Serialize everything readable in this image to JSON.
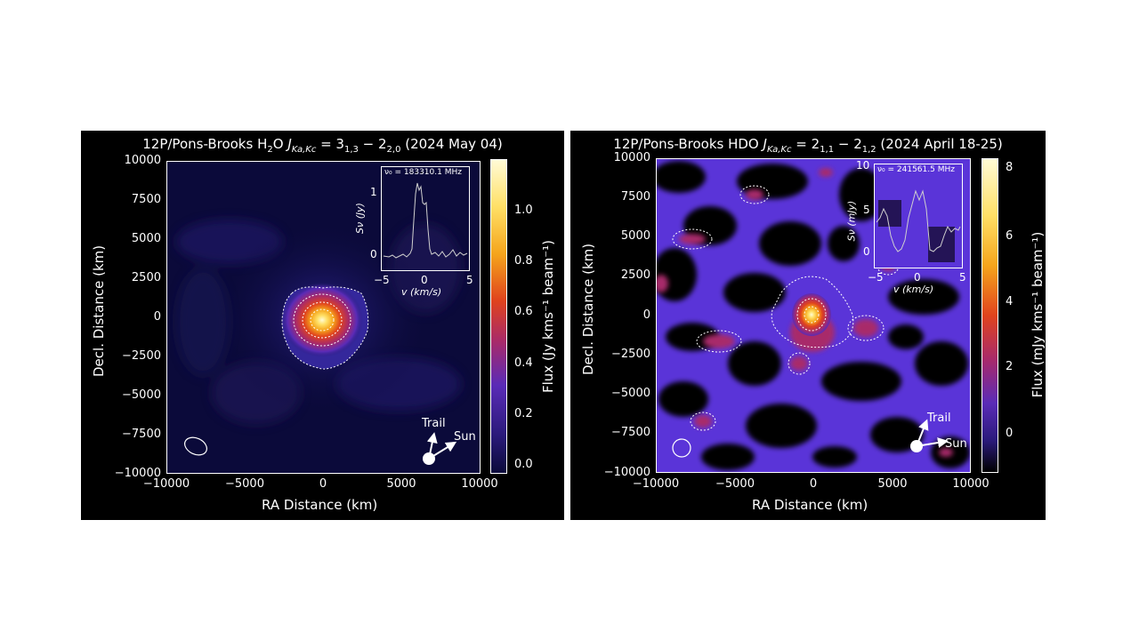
{
  "colors": {
    "panel_bg": "#000000",
    "low": "#0b0a3a",
    "mid": "#5a2bb7",
    "hot": "#e0431d",
    "peak": "#fffbd6"
  },
  "panels": [
    {
      "title": "12P/Pons-Brooks H₂O J_{Ka,Kc} = 3_{1,3} − 2_{2,0} (2024 May 04)",
      "title_main": "12P/Pons-Brooks H",
      "title_sub": "2",
      "title_rest": "O ",
      "title_j": "J",
      "title_jsub": "Ka,Kc",
      "title_eq": " = 3",
      "title_q1": "1,3",
      "title_minus": " − 2",
      "title_q2": "2,0",
      "title_date": " (2024 May 04)",
      "xlabel": "RA Distance (km)",
      "ylabel": "Decl. Distance (km)",
      "xticks": [
        "−10000",
        "−5000",
        "0",
        "5000",
        "10000"
      ],
      "yticks": [
        "10000",
        "7500",
        "5000",
        "2500",
        "0",
        "−2500",
        "−5000",
        "−7500",
        "−10000"
      ],
      "cbar_label": "Flux (Jy kms⁻¹ beam⁻¹)",
      "cbar_ticks": [
        "1.0",
        "0.8",
        "0.6",
        "0.4",
        "0.2",
        "0.0"
      ],
      "cbar_range": [
        -0.02,
        1.18
      ],
      "inset": {
        "freq_label": "ν₀ = 183310.1 MHz",
        "yticks": [
          "1",
          "0"
        ],
        "xticks": [
          "−5",
          "0",
          "5"
        ],
        "ylabel": "Sν (Jy)",
        "xlabel": "v (km/s)"
      },
      "compass": {
        "trail": "Trail",
        "sun": "Sun"
      }
    },
    {
      "title": "12P/Pons-Brooks HDO J_{Ka,Kc} = 2_{1,1} − 2_{1,2} (2024 April 18-25)",
      "title_main": "12P/Pons-Brooks HDO ",
      "title_j": "J",
      "title_jsub": "Ka,Kc",
      "title_eq": " = 2",
      "title_q1": "1,1",
      "title_minus": " − 2",
      "title_q2": "1,2",
      "title_date": " (2024 April 18-25)",
      "xlabel": "RA Distance (km)",
      "ylabel": "Decl. Distance (km)",
      "xticks": [
        "−10000",
        "−5000",
        "0",
        "5000",
        "10000"
      ],
      "yticks": [
        "10000",
        "7500",
        "5000",
        "2500",
        "0",
        "−2500",
        "−5000",
        "−7500",
        "−10000"
      ],
      "cbar_label": "Flux (mJy kms⁻¹ beam⁻¹)",
      "cbar_ticks": [
        "8",
        "6",
        "4",
        "2",
        "0"
      ],
      "cbar_range": [
        -1.2,
        8.4
      ],
      "inset": {
        "freq_label": "ν₀ = 241561.5 MHz",
        "yticks": [
          "10",
          "5",
          "0"
        ],
        "xticks": [
          "−5",
          "0",
          "5"
        ],
        "ylabel": "Sν (mJy)",
        "xlabel": "v (km/s)"
      },
      "compass": {
        "trail": "Trail",
        "sun": "Sun"
      }
    }
  ]
}
